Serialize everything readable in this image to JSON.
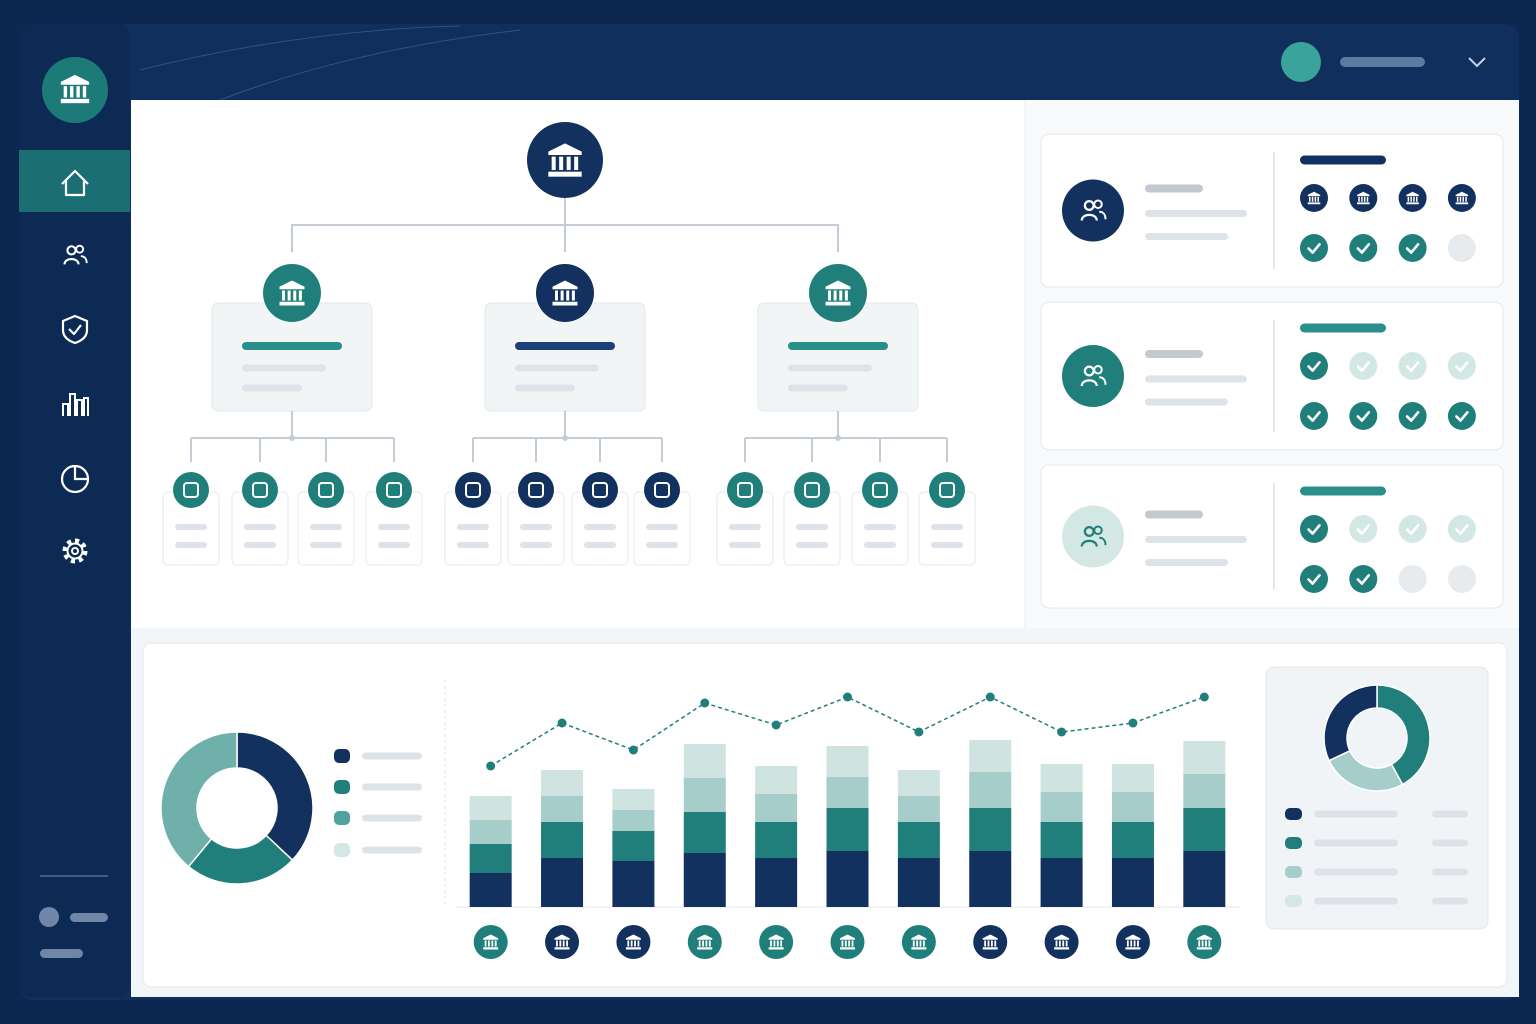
{
  "chart_data": [
    {
      "type": "donut",
      "values": [
        37,
        24,
        39
      ],
      "colors": [
        "#13315f",
        "#217f7b",
        "#6fb0aa"
      ]
    },
    {
      "type": "bar",
      "stacked": true,
      "categories": [
        null,
        null,
        null,
        null,
        null,
        null,
        null,
        null,
        null,
        null,
        null
      ],
      "ylim": [
        0,
        230
      ],
      "series": [
        {
          "color": "#13315f",
          "values": [
            34,
            49,
            46,
            54,
            49,
            56,
            49,
            56,
            49,
            49,
            56
          ]
        },
        {
          "color": "#217f7b",
          "values": [
            29,
            36,
            30,
            41,
            36,
            43,
            36,
            43,
            36,
            36,
            43
          ]
        },
        {
          "color": "#a6cdca",
          "values": [
            24,
            26,
            21,
            34,
            28,
            31,
            26,
            36,
            30,
            30,
            34
          ]
        },
        {
          "color": "#cfe3e1",
          "values": [
            24,
            26,
            21,
            34,
            28,
            31,
            26,
            32,
            28,
            28,
            33
          ]
        },
        {
          "type": "line",
          "color": "#217f7b",
          "values": [
            141,
            184,
            157,
            204,
            182,
            210,
            175,
            210,
            175,
            184,
            210
          ]
        }
      ]
    },
    {
      "type": "donut",
      "values": [
        42,
        26,
        32
      ],
      "colors": [
        "#217f7b",
        "#a6cdca",
        "#13315f"
      ]
    }
  ]
}
